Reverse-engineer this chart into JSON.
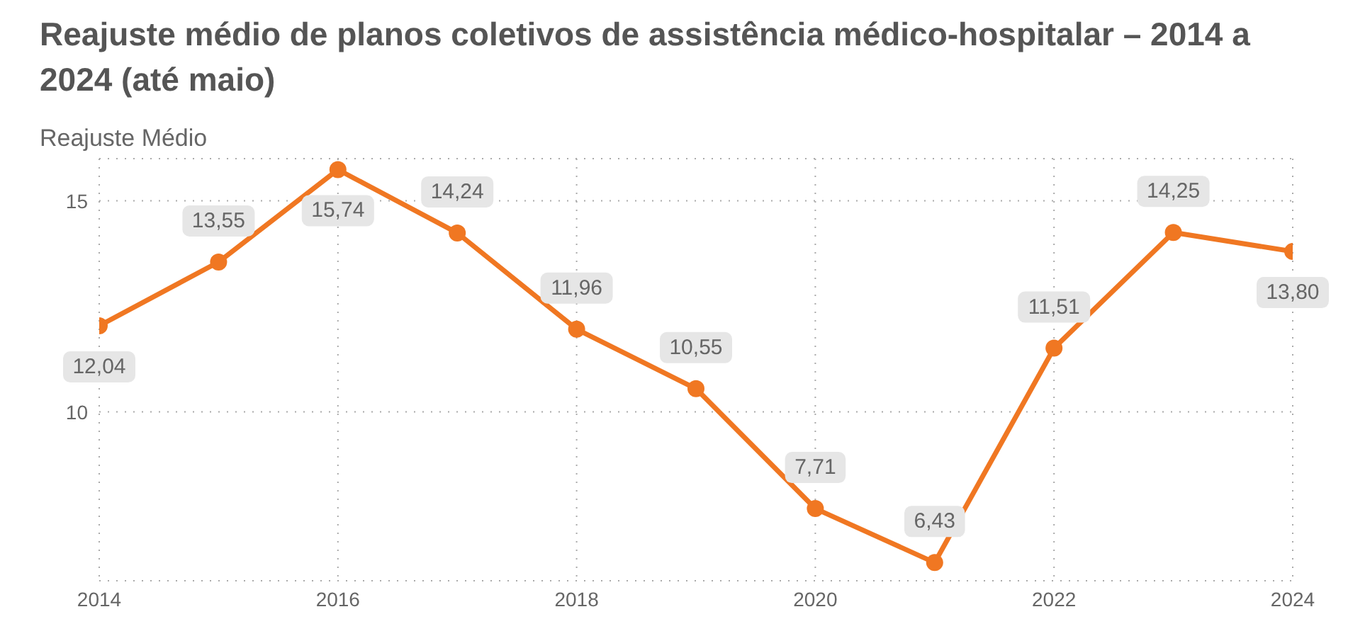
{
  "chart_data": {
    "type": "line",
    "title": "Reajuste médio de planos coletivos de assistência médico-hospitalar – 2014 a 2024 (até maio)",
    "ylabel": "Reajuste Médio",
    "x": [
      2014,
      2015,
      2016,
      2017,
      2018,
      2019,
      2020,
      2021,
      2022,
      2023,
      2024
    ],
    "series": [
      {
        "color": "#f07722",
        "values": [
          12.04,
          13.55,
          15.74,
          14.24,
          11.96,
          10.55,
          7.71,
          6.43,
          11.51,
          14.25,
          13.8
        ],
        "value_labels": [
          "12,04",
          "13,55",
          "15,74",
          "14,24",
          "11,96",
          "10,55",
          "7,71",
          "6,43",
          "11,51",
          "14,25",
          "13,80"
        ]
      }
    ],
    "xlim": [
      2014,
      2024
    ],
    "xticks": [
      2014,
      2016,
      2018,
      2020,
      2022,
      2024
    ],
    "ylim": [
      6,
      16
    ],
    "yticks": [
      10,
      15
    ],
    "grid": true,
    "marker": "circle",
    "line_style": "solid"
  }
}
